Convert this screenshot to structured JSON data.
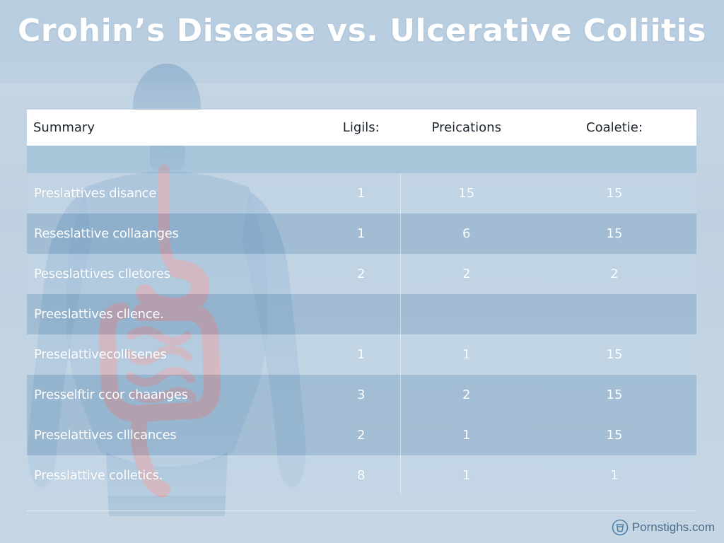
{
  "page": {
    "title": "Crohin’s Disease vs. Ulcerative Coliitis"
  },
  "table": {
    "headers": [
      "Summary",
      "Ligils:",
      "Preications",
      "Coaletie:"
    ],
    "rows": [
      {
        "label": "Preslattives disance",
        "values": [
          "1",
          "15",
          "15"
        ],
        "shade": "light"
      },
      {
        "label": "Reseslattive collaanges",
        "values": [
          "1",
          "6",
          "15"
        ],
        "shade": "dark"
      },
      {
        "label": "Peseslattives clletores",
        "values": [
          "2",
          "2",
          "2"
        ],
        "shade": "light"
      },
      {
        "label": "Preeslattives cllence.",
        "values": [
          "",
          "",
          ""
        ],
        "shade": "dark"
      },
      {
        "label": "Preselattivecollisenes",
        "values": [
          "1",
          "1",
          "15"
        ],
        "shade": "light"
      },
      {
        "label": "Presselftir ccor chaanges",
        "values": [
          "3",
          "2",
          "15"
        ],
        "shade": "dark"
      },
      {
        "label": "Preselattives clllcances",
        "values": [
          "2",
          "1",
          "15"
        ],
        "shade": "dark"
      },
      {
        "label": "Presslattive colletics.",
        "values": [
          "8",
          "1",
          "1"
        ],
        "shade": "light"
      }
    ]
  },
  "watermark": {
    "text": "Pornstighs.com",
    "icon": "cup-icon"
  },
  "colors": {
    "background": "#c6d7e4",
    "header_row": "#ffffff",
    "title_text": "#ffffff",
    "silhouette": "#7aa0c4",
    "digestive_tract": "#e89a9a"
  }
}
